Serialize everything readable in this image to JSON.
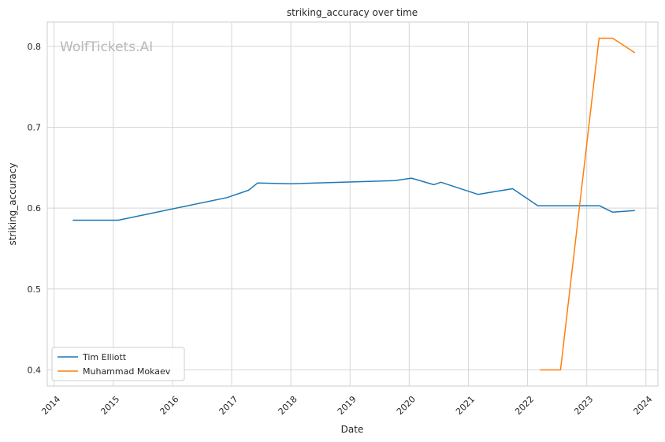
{
  "chart_data": {
    "type": "line",
    "title": "striking_accuracy over time",
    "xlabel": "Date",
    "ylabel": "striking_accuracy",
    "watermark": "WolfTickets.AI",
    "xlim": [
      "2013-11-20",
      "2024-03-15"
    ],
    "ylim": [
      0.38,
      0.83
    ],
    "x_ticks": [
      "2014",
      "2015",
      "2016",
      "2017",
      "2018",
      "2019",
      "2020",
      "2021",
      "2022",
      "2023",
      "2024"
    ],
    "y_ticks": [
      "0.4",
      "0.5",
      "0.6",
      "0.7",
      "0.8"
    ],
    "grid": true,
    "legend_position": "lower-left",
    "series": [
      {
        "name": "Tim Elliott",
        "color": "#1f77b4",
        "points": [
          {
            "x": "2014-04-26",
            "y": 0.585
          },
          {
            "x": "2015-02-01",
            "y": 0.585
          },
          {
            "x": "2016-12-03",
            "y": 0.613
          },
          {
            "x": "2017-04-15",
            "y": 0.622
          },
          {
            "x": "2017-06-10",
            "y": 0.631
          },
          {
            "x": "2018-01-01",
            "y": 0.63
          },
          {
            "x": "2019-10-05",
            "y": 0.634
          },
          {
            "x": "2020-01-15",
            "y": 0.637
          },
          {
            "x": "2020-06-01",
            "y": 0.629
          },
          {
            "x": "2020-07-15",
            "y": 0.632
          },
          {
            "x": "2021-03-01",
            "y": 0.617
          },
          {
            "x": "2021-10-01",
            "y": 0.624
          },
          {
            "x": "2022-03-05",
            "y": 0.603
          },
          {
            "x": "2023-03-20",
            "y": 0.603
          },
          {
            "x": "2023-06-10",
            "y": 0.595
          },
          {
            "x": "2023-10-25",
            "y": 0.597
          }
        ]
      },
      {
        "name": "Muhammad Mokaev",
        "color": "#ff7f0e",
        "points": [
          {
            "x": "2022-03-19",
            "y": 0.4
          },
          {
            "x": "2022-07-23",
            "y": 0.4
          },
          {
            "x": "2023-03-18",
            "y": 0.81
          },
          {
            "x": "2023-06-10",
            "y": 0.81
          },
          {
            "x": "2023-10-25",
            "y": 0.792
          }
        ]
      }
    ]
  }
}
